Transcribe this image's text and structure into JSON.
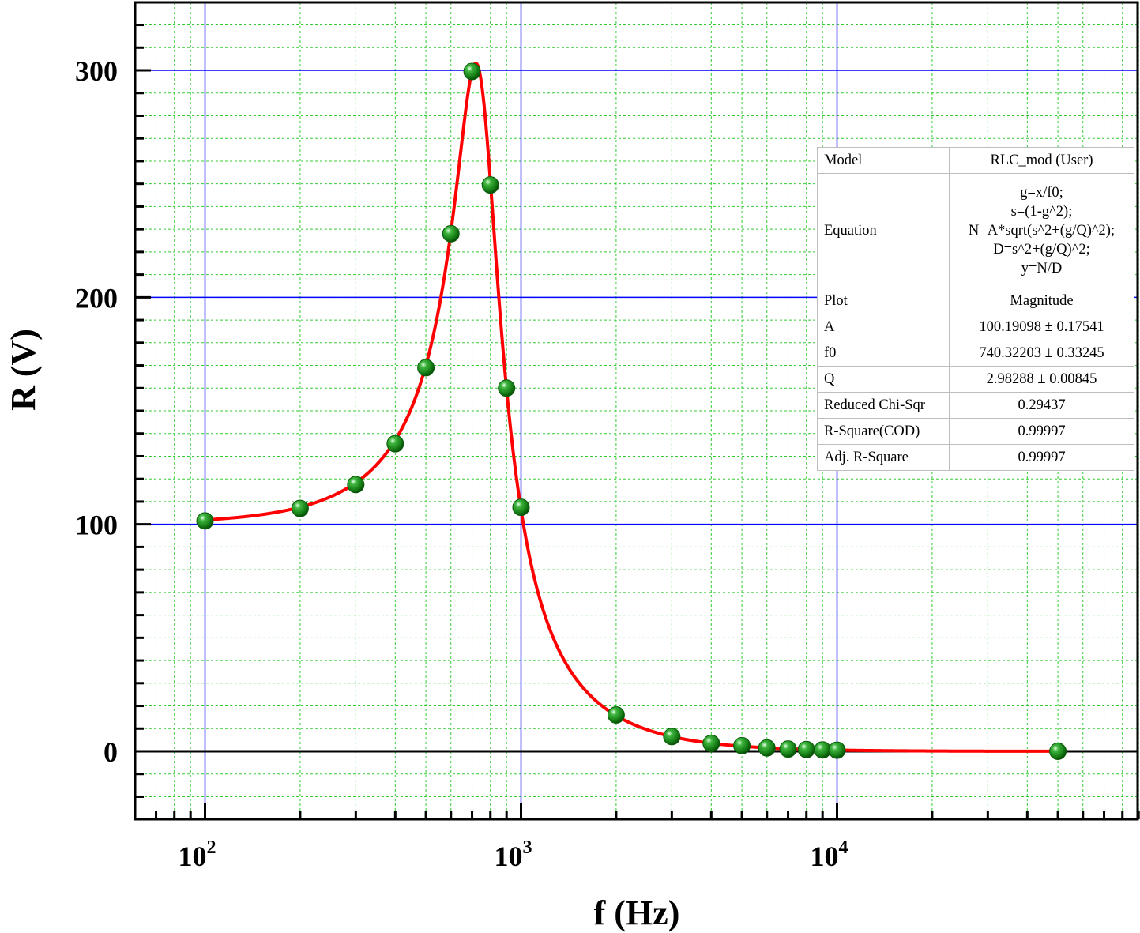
{
  "chart_data": {
    "type": "scatter",
    "xlabel": "f (Hz)",
    "ylabel": "R (V)",
    "x_scale": "log",
    "xlim": [
      65,
      90000
    ],
    "ylim": [
      -30,
      330
    ],
    "x_tick_labels": [
      {
        "base": "10",
        "exp": "2",
        "value": 100
      },
      {
        "base": "10",
        "exp": "3",
        "value": 1000
      },
      {
        "base": "10",
        "exp": "4",
        "value": 10000
      }
    ],
    "y_tick_labels": [
      "0",
      "100",
      "200",
      "300"
    ],
    "y_ticks": [
      0,
      100,
      200,
      300
    ],
    "grid": "on",
    "series": [
      {
        "kind": "scatter",
        "color": "#1f8a1f",
        "points": [
          {
            "x": 100,
            "y": 101.5
          },
          {
            "x": 200,
            "y": 107
          },
          {
            "x": 300,
            "y": 117.5
          },
          {
            "x": 400,
            "y": 135.5
          },
          {
            "x": 500,
            "y": 169
          },
          {
            "x": 600,
            "y": 228
          },
          {
            "x": 700,
            "y": 299.5
          },
          {
            "x": 800,
            "y": 249.5
          },
          {
            "x": 900,
            "y": 160
          },
          {
            "x": 1000,
            "y": 107.5
          },
          {
            "x": 2000,
            "y": 16
          },
          {
            "x": 3000,
            "y": 6.5
          },
          {
            "x": 4000,
            "y": 3.5
          },
          {
            "x": 5000,
            "y": 2.5
          },
          {
            "x": 6000,
            "y": 1.5
          },
          {
            "x": 7000,
            "y": 1
          },
          {
            "x": 8000,
            "y": 0.8
          },
          {
            "x": 9000,
            "y": 0.6
          },
          {
            "x": 10000,
            "y": 0.5
          },
          {
            "x": 50000,
            "y": 0
          }
        ]
      },
      {
        "kind": "fit-line",
        "color": "#ff0000",
        "model": {
          "A": 100.19098,
          "f0": 740.32203,
          "Q": 2.98288
        },
        "x_range": [
          100,
          50000
        ]
      }
    ]
  },
  "fit_table": [
    {
      "key": "Model",
      "value": [
        "RLC_mod (User)"
      ]
    },
    {
      "key": "Equation",
      "value": [
        "g=x/f0;",
        "s=(1-g^2);",
        "N=A*sqrt(s^2+(g/Q)^2);",
        "D=s^2+(g/Q)^2;",
        "y=N/D"
      ]
    },
    {
      "key": "Plot",
      "value": [
        "Magnitude"
      ]
    },
    {
      "key": "A",
      "value": [
        "100.19098 ± 0.17541"
      ]
    },
    {
      "key": "f0",
      "value": [
        "740.32203 ± 0.33245"
      ]
    },
    {
      "key": "Q",
      "value": [
        "2.98288 ± 0.00845"
      ]
    },
    {
      "key": "Reduced Chi-Sqr",
      "value": [
        "0.29437"
      ]
    },
    {
      "key": "R-Square(COD)",
      "value": [
        "0.99997"
      ]
    },
    {
      "key": "Adj. R-Square",
      "value": [
        "0.99997"
      ]
    }
  ],
  "colors": {
    "major_grid": "#0000ff",
    "minor_grid": "#33cc33",
    "fit_line": "#ff0000",
    "marker": "#1f8a1f",
    "zero_line": "#000000"
  }
}
